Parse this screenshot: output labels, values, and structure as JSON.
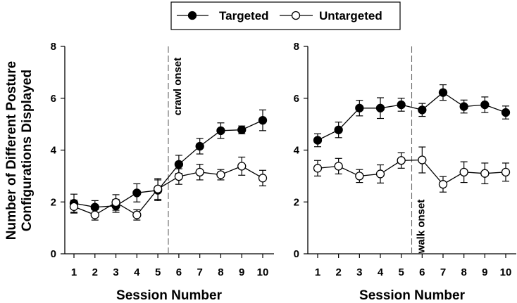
{
  "legend": [
    {
      "name": "Targeted",
      "marker": "filled"
    },
    {
      "name": "Untargeted",
      "marker": "open"
    }
  ],
  "ylabel_line1": "Number of Different Posture",
  "ylabel_line2": "Configurations Displayed",
  "chart_data": [
    {
      "type": "line",
      "panel": "left",
      "xlabel": "Session Number",
      "ylabel": "Number of Different Posture Configurations Displayed",
      "x": [
        1,
        2,
        3,
        4,
        5,
        6,
        7,
        8,
        9,
        10
      ],
      "xticks": [
        1,
        2,
        3,
        4,
        5,
        6,
        7,
        8,
        9,
        10
      ],
      "ylim": [
        0,
        8
      ],
      "yticks": [
        0,
        2,
        4,
        6,
        8
      ],
      "annotation": {
        "text": "crawl onset",
        "x": 5.5
      },
      "series": [
        {
          "name": "Targeted",
          "marker": "filled",
          "values": [
            1.95,
            1.8,
            1.85,
            2.35,
            2.45,
            3.45,
            4.15,
            4.75,
            4.78,
            5.15
          ],
          "errors": [
            0.35,
            0.25,
            0.25,
            0.35,
            0.4,
            0.35,
            0.3,
            0.3,
            0.15,
            0.4
          ]
        },
        {
          "name": "Untargeted",
          "marker": "open",
          "values": [
            1.82,
            1.5,
            1.98,
            1.5,
            2.5,
            2.98,
            3.15,
            3.05,
            3.38,
            2.92
          ],
          "errors": [
            0.25,
            0.2,
            0.3,
            0.2,
            0.4,
            0.3,
            0.3,
            0.2,
            0.35,
            0.3
          ]
        }
      ]
    },
    {
      "type": "line",
      "panel": "right",
      "xlabel": "Session Number",
      "x": [
        1,
        2,
        3,
        4,
        5,
        6,
        7,
        8,
        9,
        10
      ],
      "xticks": [
        1,
        2,
        3,
        4,
        5,
        6,
        7,
        8,
        9,
        10
      ],
      "ylim": [
        0,
        8
      ],
      "yticks": [
        0,
        2,
        4,
        6,
        8
      ],
      "annotation": {
        "text": "walk onset",
        "x": 5.5
      },
      "series": [
        {
          "name": "Targeted",
          "marker": "filled",
          "values": [
            4.38,
            4.78,
            5.62,
            5.62,
            5.75,
            5.55,
            6.22,
            5.68,
            5.75,
            5.45
          ],
          "errors": [
            0.25,
            0.3,
            0.3,
            0.4,
            0.25,
            0.25,
            0.3,
            0.25,
            0.3,
            0.25
          ]
        },
        {
          "name": "Untargeted",
          "marker": "open",
          "values": [
            3.3,
            3.38,
            3.0,
            3.08,
            3.6,
            3.62,
            2.68,
            3.15,
            3.1,
            3.15
          ],
          "errors": [
            0.3,
            0.3,
            0.25,
            0.35,
            0.3,
            0.5,
            0.3,
            0.4,
            0.4,
            0.35
          ]
        }
      ]
    }
  ]
}
